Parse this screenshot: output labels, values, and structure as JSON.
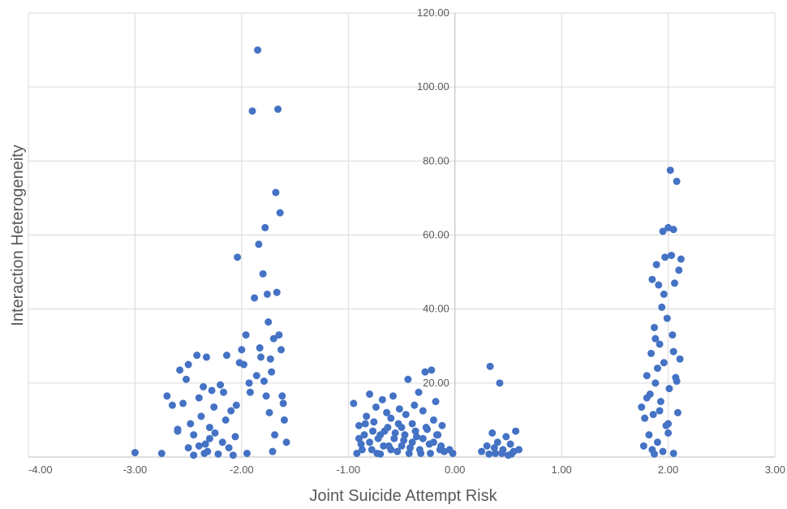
{
  "chart_data": {
    "type": "scatter",
    "title": "",
    "xlabel": "Joint Suicide Attempt Risk",
    "ylabel": "Interaction Heterogeneity",
    "xlim": [
      -4,
      3
    ],
    "ylim": [
      0,
      120
    ],
    "x_ticks": [
      "-4.00",
      "-3.00",
      "-2.00",
      "-1.00",
      "0.00",
      "1.00",
      "2.00",
      "3.00"
    ],
    "y_ticks": [
      "20.00",
      "40.00",
      "60.00",
      "80.00",
      "100.00",
      "120.00"
    ],
    "grid": true,
    "legend": "none",
    "marker_color": "#4472C4",
    "series": [
      {
        "points": [
          [
            -3.0,
            1.2
          ],
          [
            -2.75,
            1.0
          ],
          [
            -2.7,
            16.5
          ],
          [
            -2.65,
            14.0
          ],
          [
            -2.6,
            7.5
          ],
          [
            -2.58,
            23.5
          ],
          [
            -2.55,
            14.5
          ],
          [
            -2.52,
            21.0
          ],
          [
            -2.5,
            25.0
          ],
          [
            -2.48,
            9.0
          ],
          [
            -2.45,
            0.5
          ],
          [
            -2.42,
            27.5
          ],
          [
            -2.4,
            16.0
          ],
          [
            -2.38,
            11.0
          ],
          [
            -2.36,
            19.0
          ],
          [
            -2.34,
            3.5
          ],
          [
            -2.33,
            27.0
          ],
          [
            -2.32,
            1.5
          ],
          [
            -2.3,
            8.0
          ],
          [
            -2.28,
            18.0
          ],
          [
            -2.26,
            13.5
          ],
          [
            -2.25,
            6.5
          ],
          [
            -2.22,
            0.8
          ],
          [
            -2.2,
            19.5
          ],
          [
            -2.18,
            4.0
          ],
          [
            -2.17,
            17.5
          ],
          [
            -2.15,
            10.0
          ],
          [
            -2.14,
            27.5
          ],
          [
            -2.12,
            2.5
          ],
          [
            -2.1,
            12.5
          ],
          [
            -2.08,
            0.5
          ],
          [
            -2.06,
            5.5
          ],
          [
            -2.05,
            14.0
          ],
          [
            -2.04,
            54.0
          ],
          [
            -2.02,
            25.5
          ],
          [
            -2.0,
            29.0
          ],
          [
            -1.98,
            25.0
          ],
          [
            -1.96,
            33.0
          ],
          [
            -1.95,
            1.0
          ],
          [
            -1.93,
            20.0
          ],
          [
            -1.92,
            17.5
          ],
          [
            -1.9,
            93.5
          ],
          [
            -1.88,
            43.0
          ],
          [
            -1.86,
            22.0
          ],
          [
            -1.85,
            110.0
          ],
          [
            -1.84,
            57.5
          ],
          [
            -1.83,
            29.5
          ],
          [
            -1.82,
            27.0
          ],
          [
            -1.8,
            49.5
          ],
          [
            -1.79,
            20.5
          ],
          [
            -1.78,
            62.0
          ],
          [
            -1.77,
            16.5
          ],
          [
            -1.76,
            44.0
          ],
          [
            -1.75,
            36.5
          ],
          [
            -1.74,
            12.0
          ],
          [
            -1.73,
            26.5
          ],
          [
            -1.72,
            23.0
          ],
          [
            -1.71,
            1.5
          ],
          [
            -1.7,
            32.0
          ],
          [
            -1.69,
            6.0
          ],
          [
            -1.68,
            71.5
          ],
          [
            -1.67,
            44.5
          ],
          [
            -1.66,
            94.0
          ],
          [
            -1.65,
            33.0
          ],
          [
            -1.64,
            66.0
          ],
          [
            -1.63,
            29.0
          ],
          [
            -1.62,
            16.5
          ],
          [
            -1.61,
            14.5
          ],
          [
            -1.6,
            10.0
          ],
          [
            -1.58,
            4.0
          ],
          [
            -2.6,
            7.0
          ],
          [
            -2.5,
            2.5
          ],
          [
            -2.45,
            6.0
          ],
          [
            -2.4,
            3.0
          ],
          [
            -2.35,
            1.0
          ],
          [
            -2.3,
            5.0
          ],
          [
            -0.95,
            14.5
          ],
          [
            -0.92,
            1.0
          ],
          [
            -0.9,
            8.5
          ],
          [
            -0.88,
            3.5
          ],
          [
            -0.85,
            6.0
          ],
          [
            -0.83,
            11.0
          ],
          [
            -0.8,
            17.0
          ],
          [
            -0.78,
            2.0
          ],
          [
            -0.76,
            9.5
          ],
          [
            -0.74,
            13.5
          ],
          [
            -0.72,
            5.0
          ],
          [
            -0.7,
            0.8
          ],
          [
            -0.68,
            15.5
          ],
          [
            -0.66,
            7.0
          ],
          [
            -0.64,
            12.0
          ],
          [
            -0.62,
            3.0
          ],
          [
            -0.6,
            10.5
          ],
          [
            -0.58,
            16.5
          ],
          [
            -0.56,
            6.5
          ],
          [
            -0.54,
            1.5
          ],
          [
            -0.52,
            13.0
          ],
          [
            -0.5,
            8.0
          ],
          [
            -0.48,
            4.5
          ],
          [
            -0.46,
            11.5
          ],
          [
            -0.44,
            21.0
          ],
          [
            -0.42,
            2.5
          ],
          [
            -0.4,
            9.0
          ],
          [
            -0.38,
            14.0
          ],
          [
            -0.36,
            5.5
          ],
          [
            -0.34,
            17.5
          ],
          [
            -0.32,
            1.0
          ],
          [
            -0.3,
            12.5
          ],
          [
            -0.28,
            23.0
          ],
          [
            -0.26,
            7.5
          ],
          [
            -0.24,
            3.5
          ],
          [
            -0.22,
            23.5
          ],
          [
            -0.2,
            10.0
          ],
          [
            -0.18,
            15.0
          ],
          [
            -0.16,
            6.0
          ],
          [
            -0.14,
            2.0
          ],
          [
            -0.12,
            8.5
          ],
          [
            -0.1,
            1.5
          ],
          [
            -0.05,
            2.0
          ],
          [
            -0.02,
            1.0
          ],
          [
            -0.9,
            5.0
          ],
          [
            -0.87,
            2.0
          ],
          [
            -0.84,
            9.0
          ],
          [
            -0.8,
            4.0
          ],
          [
            -0.77,
            7.0
          ],
          [
            -0.73,
            1.0
          ],
          [
            -0.7,
            6.0
          ],
          [
            -0.67,
            3.0
          ],
          [
            -0.63,
            8.0
          ],
          [
            -0.6,
            2.0
          ],
          [
            -0.57,
            5.0
          ],
          [
            -0.53,
            9.0
          ],
          [
            -0.5,
            3.0
          ],
          [
            -0.47,
            6.0
          ],
          [
            -0.43,
            1.0
          ],
          [
            -0.4,
            4.0
          ],
          [
            -0.37,
            7.0
          ],
          [
            -0.33,
            2.0
          ],
          [
            -0.3,
            5.0
          ],
          [
            -0.27,
            8.0
          ],
          [
            -0.23,
            1.0
          ],
          [
            -0.2,
            4.0
          ],
          [
            -0.17,
            6.0
          ],
          [
            -0.13,
            3.0
          ],
          [
            0.25,
            1.5
          ],
          [
            0.3,
            3.0
          ],
          [
            0.33,
            24.5
          ],
          [
            0.35,
            6.5
          ],
          [
            0.38,
            1.0
          ],
          [
            0.4,
            4.0
          ],
          [
            0.42,
            20.0
          ],
          [
            0.45,
            2.0
          ],
          [
            0.48,
            5.5
          ],
          [
            0.5,
            0.5
          ],
          [
            0.52,
            3.5
          ],
          [
            0.55,
            1.5
          ],
          [
            0.57,
            7.0
          ],
          [
            0.6,
            2.0
          ],
          [
            0.32,
            0.8
          ],
          [
            0.37,
            2.5
          ],
          [
            0.44,
            1.0
          ],
          [
            0.53,
            0.8
          ],
          [
            1.75,
            13.5
          ],
          [
            1.77,
            3.0
          ],
          [
            1.78,
            10.5
          ],
          [
            1.8,
            22.0
          ],
          [
            1.82,
            6.0
          ],
          [
            1.83,
            17.0
          ],
          [
            1.84,
            28.0
          ],
          [
            1.85,
            48.0
          ],
          [
            1.86,
            11.5
          ],
          [
            1.87,
            35.0
          ],
          [
            1.88,
            20.0
          ],
          [
            1.89,
            52.0
          ],
          [
            1.9,
            4.0
          ],
          [
            1.91,
            46.5
          ],
          [
            1.92,
            30.5
          ],
          [
            1.93,
            15.0
          ],
          [
            1.94,
            40.5
          ],
          [
            1.95,
            61.0
          ],
          [
            1.96,
            25.5
          ],
          [
            1.97,
            54.0
          ],
          [
            1.98,
            8.5
          ],
          [
            1.99,
            37.5
          ],
          [
            2.0,
            62.0
          ],
          [
            2.01,
            18.5
          ],
          [
            2.02,
            77.5
          ],
          [
            2.03,
            54.5
          ],
          [
            2.04,
            33.0
          ],
          [
            2.05,
            61.5
          ],
          [
            2.06,
            47.0
          ],
          [
            2.07,
            21.5
          ],
          [
            2.08,
            74.5
          ],
          [
            2.09,
            12.0
          ],
          [
            2.1,
            50.5
          ],
          [
            2.11,
            26.5
          ],
          [
            2.12,
            53.5
          ],
          [
            2.05,
            1.0
          ],
          [
            1.95,
            1.5
          ],
          [
            1.85,
            2.0
          ],
          [
            2.0,
            9.0
          ],
          [
            1.9,
            24.0
          ],
          [
            2.05,
            28.5
          ],
          [
            1.8,
            16.0
          ],
          [
            1.88,
            32.0
          ],
          [
            1.96,
            44.0
          ],
          [
            2.08,
            20.5
          ],
          [
            1.92,
            12.5
          ],
          [
            2.0,
            6.5
          ],
          [
            1.87,
            0.8
          ]
        ]
      }
    ]
  }
}
